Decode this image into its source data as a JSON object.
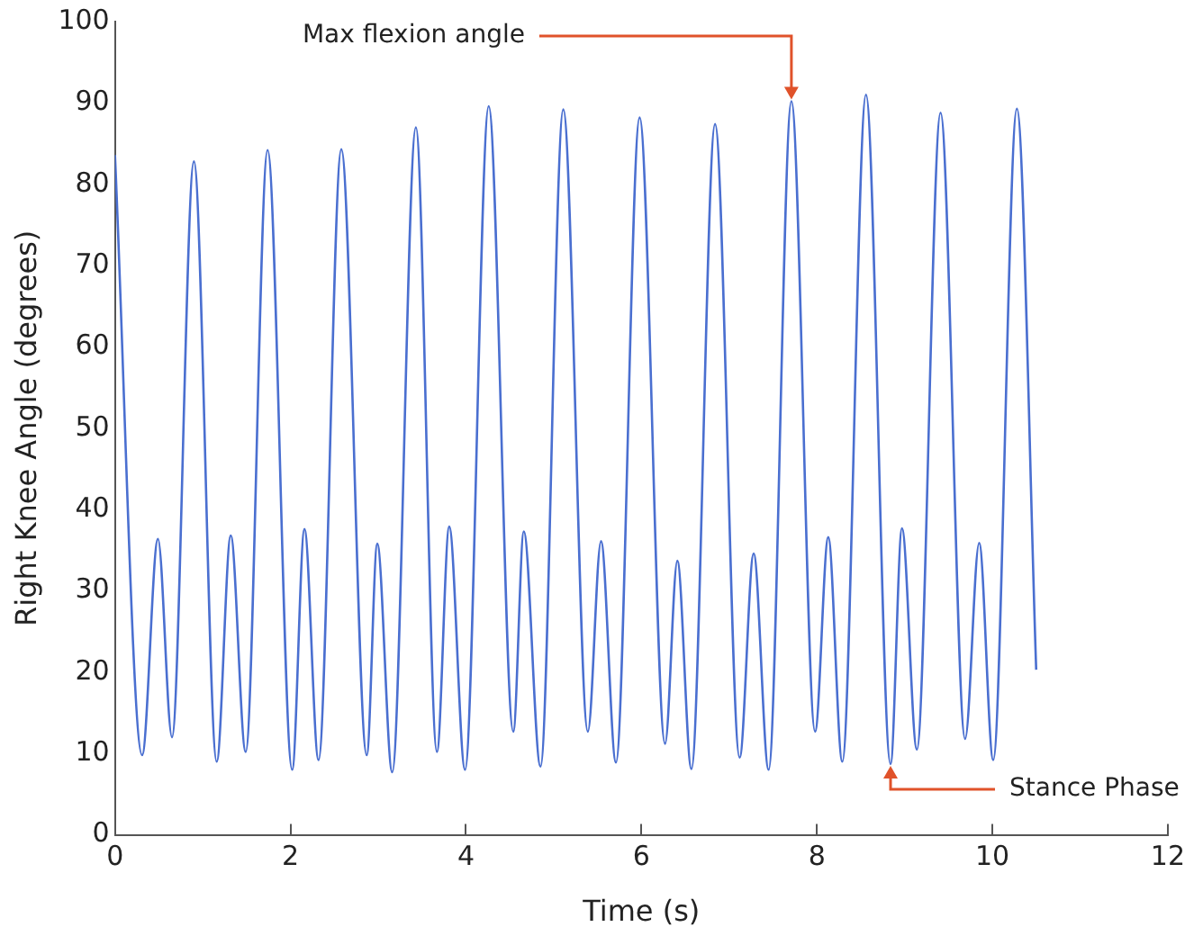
{
  "chart_data": {
    "type": "line",
    "xlabel": "Time (s)",
    "ylabel": "Right Knee Angle (degrees)",
    "x": [
      0,
      0.31,
      0.49,
      0.65,
      0.9,
      1.16,
      1.32,
      1.49,
      1.74,
      2.02,
      2.16,
      2.32,
      2.58,
      2.87,
      2.99,
      3.16,
      3.43,
      3.67,
      3.81,
      3.99,
      4.26,
      4.54,
      4.66,
      4.85,
      5.11,
      5.39,
      5.54,
      5.71,
      5.98,
      6.27,
      6.41,
      6.57,
      6.84,
      7.12,
      7.28,
      7.45,
      7.71,
      7.98,
      8.13,
      8.29,
      8.56,
      8.84,
      8.97,
      9.14,
      9.41,
      9.69,
      9.85,
      10.01,
      10.28,
      10.5
    ],
    "series": [
      {
        "color": "#4a6fd0",
        "values": [
          83.6,
          9.8,
          36.4,
          12.0,
          82.8,
          9.0,
          36.8,
          10.2,
          84.2,
          8.0,
          37.6,
          9.2,
          84.3,
          9.8,
          35.8,
          7.7,
          87.0,
          10.2,
          37.9,
          8.0,
          89.6,
          12.7,
          37.3,
          8.4,
          89.2,
          12.7,
          36.1,
          8.9,
          88.2,
          11.2,
          33.7,
          8.1,
          87.4,
          9.5,
          34.6,
          8.0,
          90.2,
          12.7,
          36.6,
          9.0,
          91.0,
          8.7,
          37.7,
          10.5,
          88.8,
          11.8,
          35.9,
          9.2,
          89.3,
          20.3
        ]
      }
    ],
    "xlim": [
      0,
      12
    ],
    "xticks": [
      0,
      2,
      4,
      6,
      8,
      10,
      12
    ],
    "ylim": [
      0,
      100
    ],
    "yticks": [
      0,
      10,
      20,
      30,
      40,
      50,
      60,
      70,
      80,
      90,
      100
    ],
    "grid": false,
    "legend": false,
    "marker": "none",
    "line_style": "solid",
    "annotations": [
      {
        "text": "Max flexion angle",
        "x": 7.71,
        "y": 90.2
      },
      {
        "text": "Stance Phase",
        "x": 8.84,
        "y": 8.7
      }
    ]
  }
}
